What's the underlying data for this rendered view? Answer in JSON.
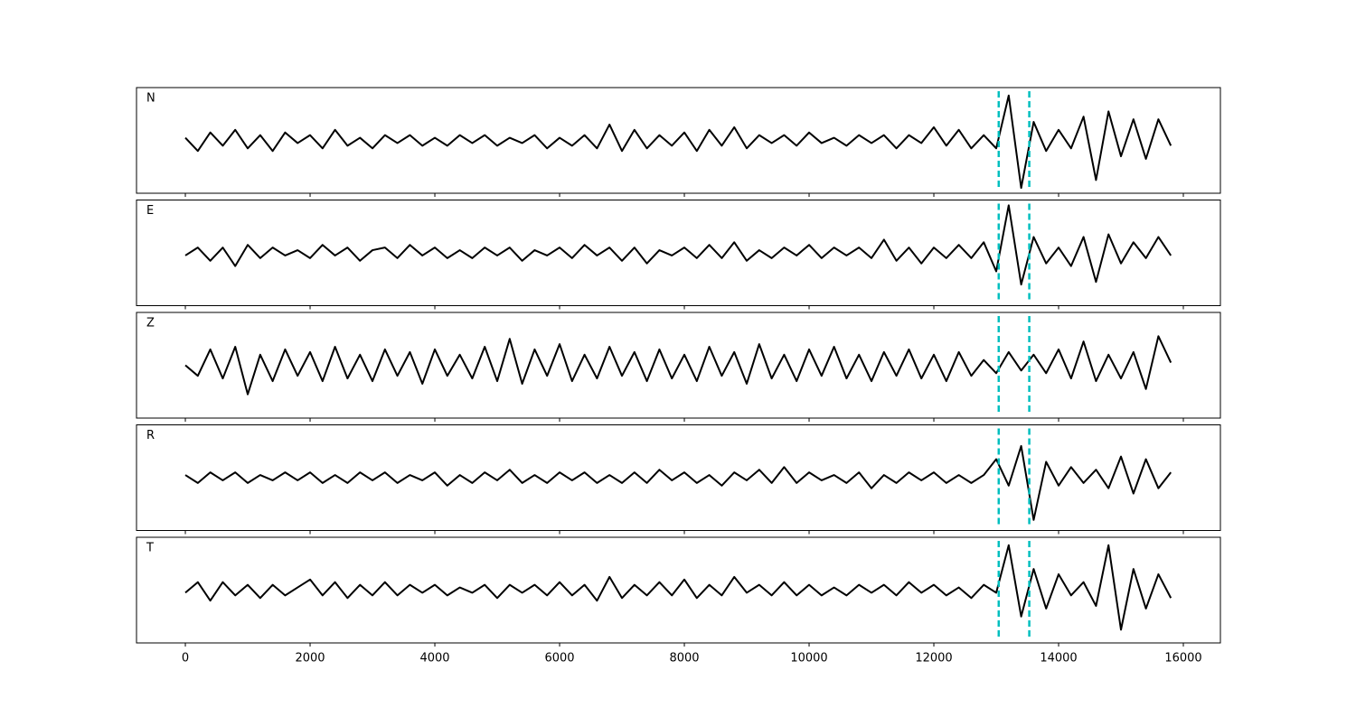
{
  "chart_data": [
    {
      "type": "line",
      "title": "N",
      "color": "#000000",
      "vlines": [
        13040,
        13530
      ],
      "vline_color": "#00bfbf",
      "xlim": [
        -783,
        16594
      ],
      "ylim": [
        -1,
        1
      ],
      "xticks": [
        0,
        2000,
        4000,
        6000,
        8000,
        10000,
        12000,
        14000,
        16000
      ],
      "x": [
        0,
        200,
        400,
        600,
        800,
        1000,
        1200,
        1400,
        1600,
        1800,
        2000,
        2200,
        2400,
        2600,
        2800,
        3000,
        3200,
        3400,
        3600,
        3800,
        4000,
        4200,
        4400,
        4600,
        4800,
        5000,
        5200,
        5400,
        5600,
        5800,
        6000,
        6200,
        6400,
        6600,
        6800,
        7000,
        7200,
        7400,
        7600,
        7800,
        8000,
        8200,
        8400,
        8600,
        8800,
        9000,
        9200,
        9400,
        9600,
        9800,
        10000,
        10200,
        10400,
        10600,
        10800,
        11000,
        11200,
        11400,
        11600,
        11800,
        12000,
        12200,
        12400,
        12600,
        12800,
        13000,
        13200,
        13400,
        13600,
        13800,
        14000,
        14200,
        14400,
        14600,
        14800,
        15000,
        15200,
        15400,
        15600,
        15800
      ],
      "values": [
        0.05,
        -0.2,
        0.15,
        -0.1,
        0.2,
        -0.15,
        0.1,
        -0.2,
        0.15,
        -0.05,
        0.1,
        -0.15,
        0.2,
        -0.1,
        0.05,
        -0.15,
        0.1,
        -0.05,
        0.1,
        -0.1,
        0.05,
        -0.1,
        0.1,
        -0.05,
        0.1,
        -0.1,
        0.05,
        -0.05,
        0.1,
        -0.15,
        0.05,
        -0.1,
        0.1,
        -0.15,
        0.3,
        -0.2,
        0.2,
        -0.15,
        0.1,
        -0.1,
        0.15,
        -0.2,
        0.2,
        -0.1,
        0.25,
        -0.15,
        0.1,
        -0.05,
        0.1,
        -0.1,
        0.15,
        -0.05,
        0.05,
        -0.1,
        0.1,
        -0.05,
        0.1,
        -0.15,
        0.1,
        -0.05,
        0.25,
        -0.1,
        0.2,
        -0.15,
        0.1,
        -0.15,
        0.85,
        -0.9,
        0.35,
        -0.2,
        0.2,
        -0.15,
        0.45,
        -0.75,
        0.55,
        -0.3,
        0.4,
        -0.35,
        0.4,
        -0.1
      ]
    },
    {
      "type": "line",
      "title": "E",
      "color": "#000000",
      "vlines": [
        13040,
        13530
      ],
      "vline_color": "#00bfbf",
      "xlim": [
        -783,
        16594
      ],
      "ylim": [
        -1,
        1
      ],
      "xticks": [
        0,
        2000,
        4000,
        6000,
        8000,
        10000,
        12000,
        14000,
        16000
      ],
      "x": [
        0,
        200,
        400,
        600,
        800,
        1000,
        1200,
        1400,
        1600,
        1800,
        2000,
        2200,
        2400,
        2600,
        2800,
        3000,
        3200,
        3400,
        3600,
        3800,
        4000,
        4200,
        4400,
        4600,
        4800,
        5000,
        5200,
        5400,
        5600,
        5800,
        6000,
        6200,
        6400,
        6600,
        6800,
        7000,
        7200,
        7400,
        7600,
        7800,
        8000,
        8200,
        8400,
        8600,
        8800,
        9000,
        9200,
        9400,
        9600,
        9800,
        10000,
        10200,
        10400,
        10600,
        10800,
        11000,
        11200,
        11400,
        11600,
        11800,
        12000,
        12200,
        12400,
        12600,
        12800,
        13000,
        13200,
        13400,
        13600,
        13800,
        14000,
        14200,
        14400,
        14600,
        14800,
        15000,
        15200,
        15400,
        15600,
        15800
      ],
      "values": [
        -0.05,
        0.1,
        -0.15,
        0.1,
        -0.25,
        0.15,
        -0.1,
        0.1,
        -0.05,
        0.05,
        -0.1,
        0.15,
        -0.05,
        0.1,
        -0.15,
        0.05,
        0.1,
        -0.1,
        0.15,
        -0.05,
        0.1,
        -0.1,
        0.05,
        -0.1,
        0.1,
        -0.05,
        0.1,
        -0.15,
        0.05,
        -0.05,
        0.1,
        -0.1,
        0.15,
        -0.05,
        0.1,
        -0.15,
        0.1,
        -0.2,
        0.05,
        -0.05,
        0.1,
        -0.1,
        0.15,
        -0.1,
        0.2,
        -0.15,
        0.05,
        -0.1,
        0.1,
        -0.05,
        0.15,
        -0.1,
        0.1,
        -0.05,
        0.1,
        -0.1,
        0.25,
        -0.15,
        0.1,
        -0.2,
        0.1,
        -0.1,
        0.15,
        -0.1,
        0.2,
        -0.35,
        0.9,
        -0.6,
        0.3,
        -0.2,
        0.1,
        -0.25,
        0.3,
        -0.55,
        0.35,
        -0.2,
        0.2,
        -0.1,
        0.3,
        -0.05
      ]
    },
    {
      "type": "line",
      "title": "Z",
      "color": "#000000",
      "vlines": [
        13040,
        13530
      ],
      "vline_color": "#00bfbf",
      "xlim": [
        -783,
        16594
      ],
      "ylim": [
        -1,
        1
      ],
      "xticks": [
        0,
        2000,
        4000,
        6000,
        8000,
        10000,
        12000,
        14000,
        16000
      ],
      "x": [
        0,
        200,
        400,
        600,
        800,
        1000,
        1200,
        1400,
        1600,
        1800,
        2000,
        2200,
        2400,
        2600,
        2800,
        3000,
        3200,
        3400,
        3600,
        3800,
        4000,
        4200,
        4400,
        4600,
        4800,
        5000,
        5200,
        5400,
        5600,
        5800,
        6000,
        6200,
        6400,
        6600,
        6800,
        7000,
        7200,
        7400,
        7600,
        7800,
        8000,
        8200,
        8400,
        8600,
        8800,
        9000,
        9200,
        9400,
        9600,
        9800,
        10000,
        10200,
        10400,
        10600,
        10800,
        11000,
        11200,
        11400,
        11600,
        11800,
        12000,
        12200,
        12400,
        12600,
        12800,
        13000,
        13200,
        13400,
        13600,
        13800,
        14000,
        14200,
        14400,
        14600,
        14800,
        15000,
        15200,
        15400,
        15600,
        15800
      ],
      "values": [
        0.0,
        -0.2,
        0.3,
        -0.25,
        0.35,
        -0.55,
        0.2,
        -0.3,
        0.3,
        -0.2,
        0.25,
        -0.3,
        0.35,
        -0.25,
        0.2,
        -0.3,
        0.3,
        -0.2,
        0.25,
        -0.35,
        0.3,
        -0.2,
        0.2,
        -0.25,
        0.35,
        -0.3,
        0.5,
        -0.35,
        0.3,
        -0.2,
        0.4,
        -0.3,
        0.2,
        -0.25,
        0.35,
        -0.2,
        0.25,
        -0.3,
        0.3,
        -0.25,
        0.2,
        -0.3,
        0.35,
        -0.2,
        0.25,
        -0.35,
        0.4,
        -0.25,
        0.2,
        -0.3,
        0.3,
        -0.2,
        0.35,
        -0.25,
        0.2,
        -0.3,
        0.25,
        -0.2,
        0.3,
        -0.25,
        0.2,
        -0.3,
        0.25,
        -0.2,
        0.1,
        -0.15,
        0.25,
        -0.1,
        0.2,
        -0.15,
        0.3,
        -0.25,
        0.45,
        -0.3,
        0.2,
        -0.25,
        0.25,
        -0.45,
        0.55,
        0.05
      ]
    },
    {
      "type": "line",
      "title": "R",
      "color": "#000000",
      "vlines": [
        13040,
        13530
      ],
      "vline_color": "#00bfbf",
      "xlim": [
        -783,
        16594
      ],
      "ylim": [
        -1,
        1
      ],
      "xticks": [
        0,
        2000,
        4000,
        6000,
        8000,
        10000,
        12000,
        14000,
        16000
      ],
      "x": [
        0,
        200,
        400,
        600,
        800,
        1000,
        1200,
        1400,
        1600,
        1800,
        2000,
        2200,
        2400,
        2600,
        2800,
        3000,
        3200,
        3400,
        3600,
        3800,
        4000,
        4200,
        4400,
        4600,
        4800,
        5000,
        5200,
        5400,
        5600,
        5800,
        6000,
        6200,
        6400,
        6600,
        6800,
        7000,
        7200,
        7400,
        7600,
        7800,
        8000,
        8200,
        8400,
        8600,
        8800,
        9000,
        9200,
        9400,
        9600,
        9800,
        10000,
        10200,
        10400,
        10600,
        10800,
        11000,
        11200,
        11400,
        11600,
        11800,
        12000,
        12200,
        12400,
        12600,
        12800,
        13000,
        13200,
        13400,
        13600,
        13800,
        14000,
        14200,
        14400,
        14600,
        14800,
        15000,
        15200,
        15400,
        15600,
        15800
      ],
      "values": [
        0.05,
        -0.1,
        0.1,
        -0.05,
        0.1,
        -0.1,
        0.05,
        -0.05,
        0.1,
        -0.05,
        0.1,
        -0.1,
        0.05,
        -0.1,
        0.1,
        -0.05,
        0.1,
        -0.1,
        0.05,
        -0.05,
        0.1,
        -0.15,
        0.05,
        -0.1,
        0.1,
        -0.05,
        0.15,
        -0.1,
        0.05,
        -0.1,
        0.1,
        -0.05,
        0.1,
        -0.1,
        0.05,
        -0.1,
        0.1,
        -0.1,
        0.15,
        -0.05,
        0.1,
        -0.1,
        0.05,
        -0.15,
        0.1,
        -0.05,
        0.15,
        -0.1,
        0.2,
        -0.1,
        0.1,
        -0.05,
        0.05,
        -0.1,
        0.1,
        -0.2,
        0.05,
        -0.1,
        0.1,
        -0.05,
        0.1,
        -0.1,
        0.05,
        -0.1,
        0.05,
        0.35,
        -0.15,
        0.6,
        -0.8,
        0.3,
        -0.15,
        0.2,
        -0.1,
        0.15,
        -0.2,
        0.4,
        -0.3,
        0.35,
        -0.2,
        0.1
      ]
    },
    {
      "type": "line",
      "title": "T",
      "color": "#000000",
      "vlines": [
        13040,
        13530
      ],
      "vline_color": "#00bfbf",
      "xlim": [
        -783,
        16594
      ],
      "ylim": [
        -1,
        1
      ],
      "xticks": [
        0,
        2000,
        4000,
        6000,
        8000,
        10000,
        12000,
        14000,
        16000
      ],
      "x": [
        0,
        200,
        400,
        600,
        800,
        1000,
        1200,
        1400,
        1600,
        1800,
        2000,
        2200,
        2400,
        2600,
        2800,
        3000,
        3200,
        3400,
        3600,
        3800,
        4000,
        4200,
        4400,
        4600,
        4800,
        5000,
        5200,
        5400,
        5600,
        5800,
        6000,
        6200,
        6400,
        6600,
        6800,
        7000,
        7200,
        7400,
        7600,
        7800,
        8000,
        8200,
        8400,
        8600,
        8800,
        9000,
        9200,
        9400,
        9600,
        9800,
        10000,
        10200,
        10400,
        10600,
        10800,
        11000,
        11200,
        11400,
        11600,
        11800,
        12000,
        12200,
        12400,
        12600,
        12800,
        13000,
        13200,
        13400,
        13600,
        13800,
        14000,
        14200,
        14400,
        14600,
        14800,
        15000,
        15200,
        15400,
        15600,
        15800
      ],
      "values": [
        -0.05,
        0.15,
        -0.2,
        0.15,
        -0.1,
        0.1,
        -0.15,
        0.1,
        -0.1,
        0.05,
        0.2,
        -0.1,
        0.15,
        -0.15,
        0.1,
        -0.1,
        0.15,
        -0.1,
        0.1,
        -0.05,
        0.1,
        -0.1,
        0.05,
        -0.05,
        0.1,
        -0.15,
        0.1,
        -0.05,
        0.1,
        -0.1,
        0.15,
        -0.1,
        0.1,
        -0.2,
        0.25,
        -0.15,
        0.1,
        -0.1,
        0.15,
        -0.1,
        0.2,
        -0.15,
        0.1,
        -0.1,
        0.25,
        -0.05,
        0.1,
        -0.1,
        0.15,
        -0.1,
        0.1,
        -0.1,
        0.05,
        -0.1,
        0.1,
        -0.05,
        0.1,
        -0.1,
        0.15,
        -0.05,
        0.1,
        -0.1,
        0.05,
        -0.15,
        0.1,
        -0.05,
        0.85,
        -0.5,
        0.4,
        -0.35,
        0.3,
        -0.1,
        0.15,
        -0.3,
        0.85,
        -0.75,
        0.4,
        -0.35,
        0.3,
        -0.15
      ]
    }
  ]
}
